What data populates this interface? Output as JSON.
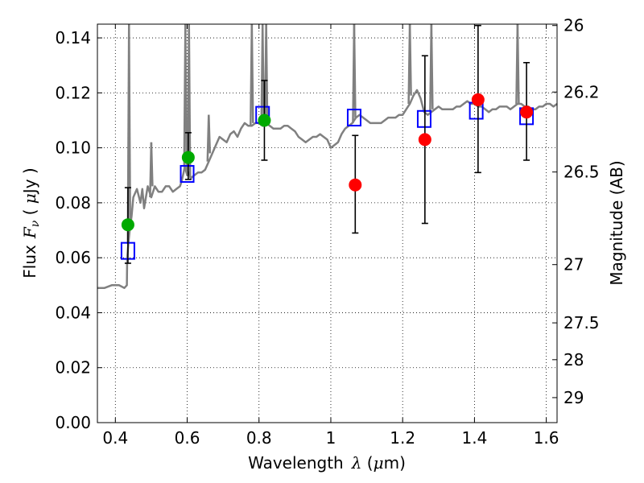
{
  "chart_data": {
    "type": "scatter",
    "xlabel": "Wavelength",
    "xlabel_symbol": "λ",
    "xlabel_unit_open": " (",
    "xlabel_unit_mu": "μ",
    "xlabel_unit_close": "m)",
    "ylabel": "Flux",
    "ylabel_symbol": "F",
    "ylabel_sub": "ν",
    "ylabel_unit_open": " ( ",
    "ylabel_unit_mu": "μ",
    "ylabel_unit_close": "Jy )",
    "ylabel_right": "Magnitude (AB)",
    "xlim": [
      0.35,
      1.63
    ],
    "ylim": [
      0.0,
      0.145
    ],
    "grid": true,
    "x_ticks": [
      0.4,
      0.6,
      0.8,
      1.0,
      1.2,
      1.4,
      1.6
    ],
    "x_tick_labels": [
      "0.4",
      "0.6",
      "0.8",
      "1",
      "1.2",
      "1.4",
      "1.6"
    ],
    "y_ticks": [
      0.0,
      0.02,
      0.04,
      0.06,
      0.08,
      0.1,
      0.12,
      0.14
    ],
    "y_tick_labels": [
      "0.00",
      "0.02",
      "0.04",
      "0.06",
      "0.08",
      "0.10",
      "0.12",
      "0.14"
    ],
    "right_ticks": [
      {
        "flux": 0.1445,
        "label": "26"
      },
      {
        "flux": 0.1203,
        "label": "26.2"
      },
      {
        "flux": 0.0912,
        "label": "26.5"
      },
      {
        "flux": 0.0575,
        "label": "27"
      },
      {
        "flux": 0.0363,
        "label": "27.5"
      },
      {
        "flux": 0.0229,
        "label": "28"
      },
      {
        "flux": 0.0091,
        "label": "29"
      }
    ],
    "series": [
      {
        "name": "model SED",
        "kind": "line",
        "color": "#808080",
        "x": [
          0.35,
          0.37,
          0.39,
          0.41,
          0.425,
          0.432,
          0.433,
          0.436,
          0.44,
          0.445,
          0.45,
          0.46,
          0.47,
          0.475,
          0.48,
          0.49,
          0.5,
          0.51,
          0.52,
          0.53,
          0.54,
          0.55,
          0.56,
          0.57,
          0.58,
          0.585,
          0.59,
          0.593,
          0.596,
          0.6,
          0.605,
          0.61,
          0.62,
          0.63,
          0.64,
          0.65,
          0.66,
          0.67,
          0.68,
          0.69,
          0.7,
          0.71,
          0.72,
          0.73,
          0.74,
          0.75,
          0.76,
          0.77,
          0.78,
          0.79,
          0.8,
          0.81,
          0.82,
          0.83,
          0.84,
          0.85,
          0.86,
          0.87,
          0.88,
          0.89,
          0.9,
          0.91,
          0.92,
          0.93,
          0.94,
          0.95,
          0.96,
          0.97,
          0.98,
          0.99,
          1.0,
          1.01,
          1.02,
          1.03,
          1.04,
          1.05,
          1.06,
          1.07,
          1.08,
          1.09,
          1.1,
          1.11,
          1.12,
          1.13,
          1.14,
          1.15,
          1.16,
          1.17,
          1.18,
          1.19,
          1.2,
          1.21,
          1.22,
          1.23,
          1.24,
          1.25,
          1.26,
          1.27,
          1.28,
          1.29,
          1.3,
          1.31,
          1.32,
          1.33,
          1.34,
          1.35,
          1.36,
          1.37,
          1.38,
          1.39,
          1.4,
          1.41,
          1.42,
          1.43,
          1.44,
          1.45,
          1.46,
          1.47,
          1.48,
          1.49,
          1.5,
          1.51,
          1.52,
          1.53,
          1.54,
          1.55,
          1.56,
          1.57,
          1.58,
          1.59,
          1.6,
          1.61,
          1.62,
          1.63
        ],
        "y": [
          0.049,
          0.049,
          0.05,
          0.05,
          0.049,
          0.05,
          0.06,
          0.065,
          0.07,
          0.075,
          0.082,
          0.085,
          0.08,
          0.085,
          0.078,
          0.086,
          0.082,
          0.086,
          0.084,
          0.084,
          0.086,
          0.086,
          0.084,
          0.085,
          0.086,
          0.088,
          0.091,
          0.093,
          0.092,
          0.09,
          0.091,
          0.089,
          0.09,
          0.091,
          0.091,
          0.092,
          0.095,
          0.098,
          0.101,
          0.104,
          0.103,
          0.102,
          0.105,
          0.106,
          0.104,
          0.107,
          0.109,
          0.108,
          0.108,
          0.109,
          0.109,
          0.108,
          0.109,
          0.108,
          0.107,
          0.107,
          0.107,
          0.108,
          0.108,
          0.107,
          0.106,
          0.104,
          0.103,
          0.102,
          0.103,
          0.104,
          0.104,
          0.105,
          0.104,
          0.103,
          0.1,
          0.101,
          0.102,
          0.105,
          0.107,
          0.108,
          0.109,
          0.111,
          0.112,
          0.111,
          0.11,
          0.109,
          0.109,
          0.109,
          0.109,
          0.11,
          0.111,
          0.111,
          0.111,
          0.112,
          0.112,
          0.114,
          0.116,
          0.119,
          0.121,
          0.118,
          0.113,
          0.112,
          0.113,
          0.114,
          0.115,
          0.114,
          0.114,
          0.114,
          0.114,
          0.115,
          0.115,
          0.116,
          0.117,
          0.116,
          0.116,
          0.115,
          0.115,
          0.114,
          0.113,
          0.114,
          0.114,
          0.115,
          0.115,
          0.115,
          0.114,
          0.115,
          0.116,
          0.116,
          0.115,
          0.115,
          0.114,
          0.114,
          0.115,
          0.115,
          0.116,
          0.116,
          0.115,
          0.116
        ]
      },
      {
        "name": "emission lines",
        "kind": "spikes",
        "color": "#808080",
        "x": [
          0.438,
          0.5,
          0.595,
          0.605,
          0.66,
          0.78,
          0.81,
          0.82,
          1.065,
          1.22,
          1.28,
          1.52
        ],
        "y": [
          0.145,
          0.102,
          0.145,
          0.145,
          0.112,
          0.145,
          0.145,
          0.145,
          0.145,
          0.145,
          0.145,
          0.145
        ]
      },
      {
        "name": "model photometry",
        "kind": "open-square",
        "color": "#0000ff",
        "x": [
          0.435,
          0.6,
          0.81,
          1.065,
          1.26,
          1.405,
          1.545
        ],
        "y": [
          0.0625,
          0.0905,
          0.112,
          0.111,
          0.1105,
          0.1135,
          0.1115
        ]
      },
      {
        "name": "green detections",
        "kind": "filled-circle",
        "color": "#00aa00",
        "x": [
          0.435,
          0.603,
          0.815
        ],
        "y": [
          0.072,
          0.0965,
          0.11
        ],
        "yerr_low": [
          0.058,
          0.0885,
          0.0955
        ],
        "yerr_high": [
          0.0855,
          0.1055,
          0.1245
        ]
      },
      {
        "name": "red detections",
        "kind": "filled-circle",
        "color": "#ff0000",
        "x": [
          1.068,
          1.262,
          1.41,
          1.545
        ],
        "y": [
          0.0865,
          0.103,
          0.1175,
          0.113
        ],
        "yerr_low": [
          0.069,
          0.0725,
          0.091,
          0.0955
        ],
        "yerr_high": [
          0.1045,
          0.1335,
          0.1445,
          0.131
        ]
      }
    ]
  }
}
